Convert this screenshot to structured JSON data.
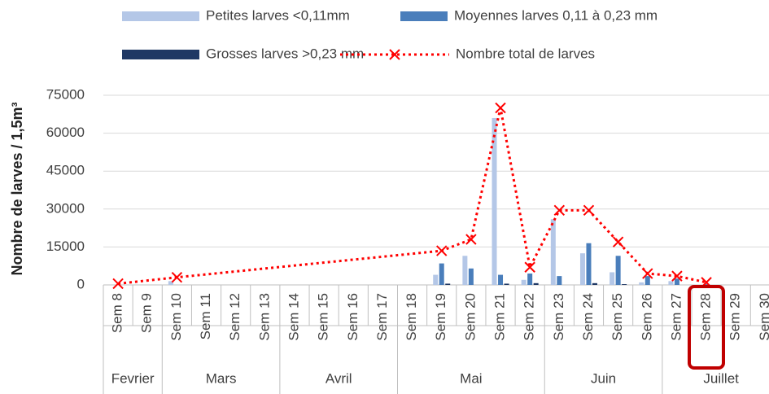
{
  "chart_data": {
    "type": "bar_line",
    "y_label": "Nombre de larves / 1,5m³",
    "categories": [
      "Sem 8",
      "Sem 9",
      "Sem 10",
      "Sem 11",
      "Sem 12",
      "Sem 13",
      "Sem 14",
      "Sem 15",
      "Sem 16",
      "Sem 17",
      "Sem 18",
      "Sem 19",
      "Sem 20",
      "Sem 21",
      "Sem 22",
      "Sem 23",
      "Sem 24",
      "Sem 25",
      "Sem 26",
      "Sem 27",
      "Sem 28",
      "Sem 29",
      "Sem 30"
    ],
    "groups": [
      {
        "label": "Fevrier",
        "span": 2
      },
      {
        "label": "Mars",
        "span": 4
      },
      {
        "label": "Avril",
        "span": 4
      },
      {
        "label": "Mai",
        "span": 5
      },
      {
        "label": "Juin",
        "span": 4
      },
      {
        "label": "Juillet",
        "span": 4
      }
    ],
    "series": [
      {
        "name": "Petites larves <0,11mm",
        "color": "#b4c7e7",
        "kind": "bar",
        "values": [
          null,
          null,
          1500,
          null,
          null,
          null,
          null,
          null,
          null,
          null,
          null,
          4000,
          11500,
          66000,
          2000,
          26000,
          12500,
          5000,
          1000,
          1500,
          null,
          null,
          null
        ]
      },
      {
        "name": "Moyennes larves 0,11 à 0,23 mm",
        "color": "#4a7ebb",
        "kind": "bar",
        "values": [
          null,
          null,
          null,
          null,
          null,
          null,
          null,
          null,
          null,
          null,
          null,
          8500,
          6500,
          4000,
          4500,
          3500,
          16500,
          11500,
          3500,
          2500,
          300,
          null,
          null
        ]
      },
      {
        "name": "Grosses larves >0,23 mm",
        "color": "#1f3864",
        "kind": "bar",
        "values": [
          null,
          null,
          null,
          null,
          null,
          null,
          null,
          null,
          null,
          null,
          null,
          500,
          null,
          500,
          700,
          null,
          700,
          300,
          null,
          null,
          null,
          null,
          null
        ]
      },
      {
        "name": "Nombre total de larves",
        "color": "#ff0000",
        "kind": "line",
        "values": [
          500,
          null,
          3000,
          null,
          null,
          null,
          null,
          null,
          null,
          null,
          null,
          13500,
          18000,
          70000,
          7000,
          29500,
          29500,
          17000,
          4500,
          3500,
          1000,
          null,
          null
        ]
      }
    ],
    "span_gaps": true,
    "ylim": [
      0,
      75000
    ],
    "yticks": [
      0,
      15000,
      30000,
      45000,
      60000,
      75000
    ],
    "grid": true
  }
}
